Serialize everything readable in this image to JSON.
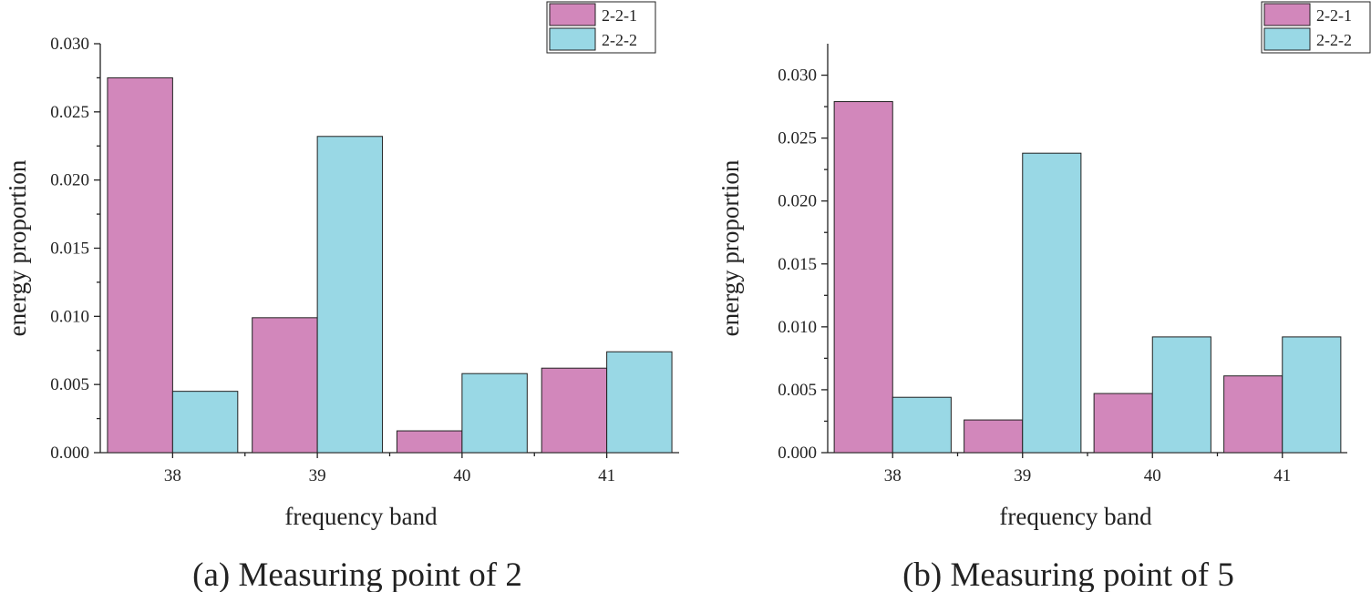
{
  "chart_data": [
    {
      "type": "bar",
      "caption": "(a) Measuring point of 2",
      "xlabel": "frequency band",
      "ylabel": "energy proportion",
      "categories": [
        "38",
        "39",
        "40",
        "41"
      ],
      "ylim": [
        0,
        0.03
      ],
      "yticks": [
        "0.000",
        "0.005",
        "0.010",
        "0.015",
        "0.020",
        "0.025",
        "0.030"
      ],
      "legend_position": "top-right",
      "series": [
        {
          "name": "2-2-1",
          "color": "#d287bb",
          "values": [
            0.0275,
            0.0099,
            0.0016,
            0.0062
          ]
        },
        {
          "name": "2-2-2",
          "color": "#99d8e5",
          "values": [
            0.0045,
            0.0232,
            0.0058,
            0.0074
          ]
        }
      ]
    },
    {
      "type": "bar",
      "caption": "(b) Measuring point of 5",
      "xlabel": "frequency band",
      "ylabel": "energy proportion",
      "categories": [
        "38",
        "39",
        "40",
        "41"
      ],
      "ylim": [
        0,
        0.0325
      ],
      "yticks": [
        "0.000",
        "0.005",
        "0.010",
        "0.015",
        "0.020",
        "0.025",
        "0.030"
      ],
      "legend_position": "top-right",
      "series": [
        {
          "name": "2-2-1",
          "color": "#d287bb",
          "values": [
            0.0279,
            0.0026,
            0.0047,
            0.0061
          ]
        },
        {
          "name": "2-2-2",
          "color": "#99d8e5",
          "values": [
            0.0044,
            0.0238,
            0.0092,
            0.0092
          ]
        }
      ]
    }
  ]
}
